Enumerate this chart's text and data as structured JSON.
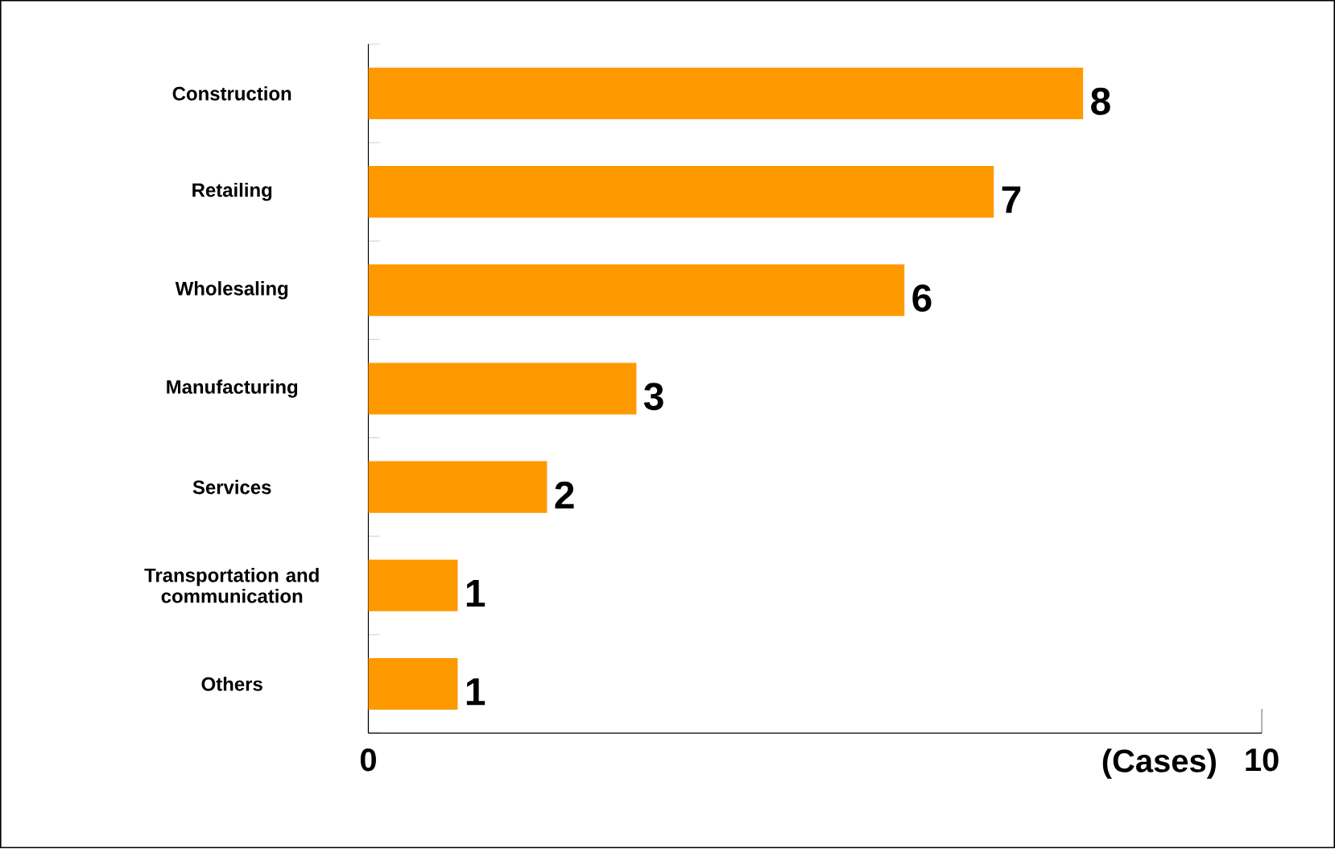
{
  "chart_data": {
    "type": "bar",
    "orientation": "horizontal",
    "categories": [
      "Construction",
      "Retailing",
      "Wholesaling",
      "Manufacturing",
      "Services",
      "Transportation and communication",
      "Others"
    ],
    "values": [
      8,
      7,
      6,
      3,
      2,
      1,
      1
    ],
    "color": "#ff9900",
    "xlim": [
      0,
      10
    ],
    "xticks": [
      0,
      10
    ],
    "xlabel": "(Cases)",
    "data_labels": true
  }
}
